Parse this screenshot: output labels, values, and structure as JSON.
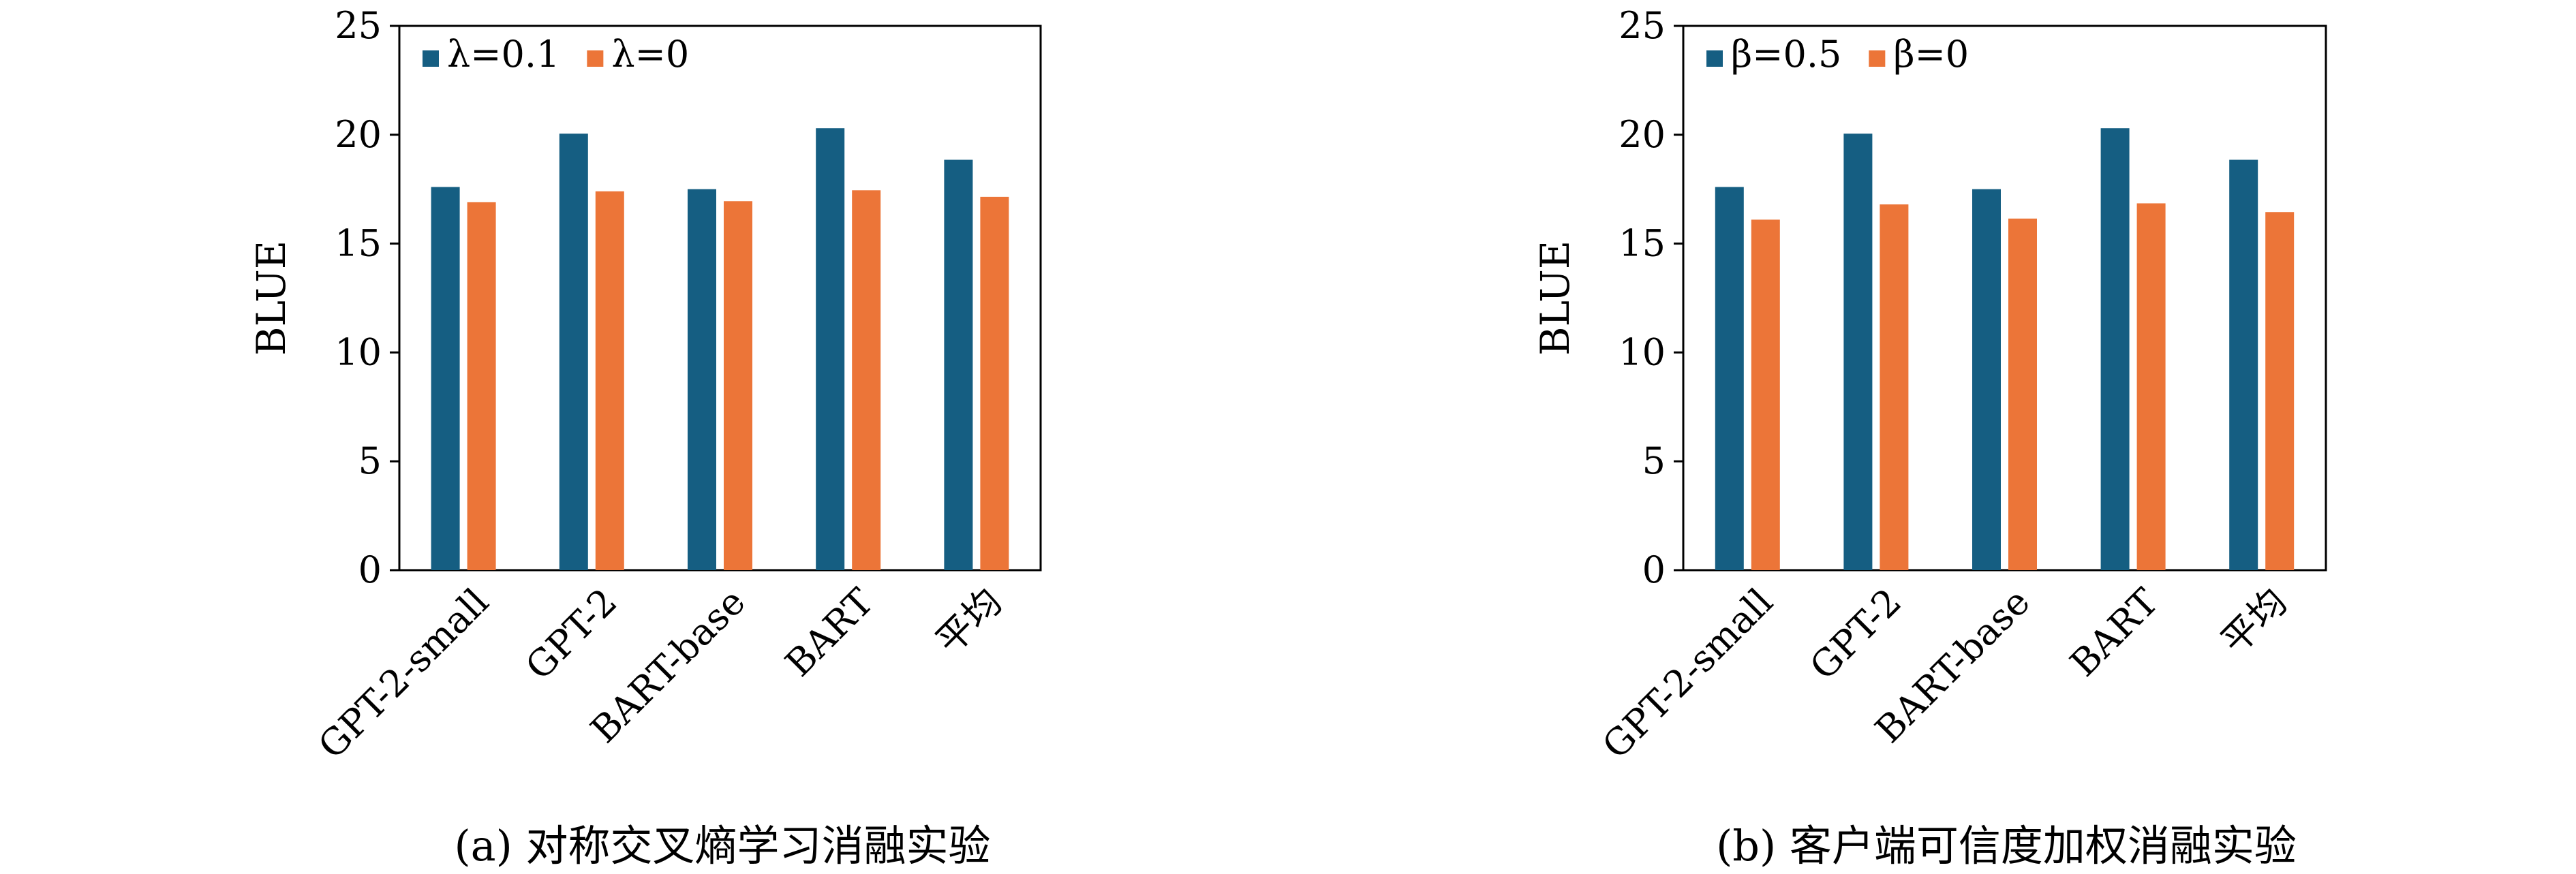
{
  "colors": {
    "series_a": "#155e82",
    "series_b": "#ec7538",
    "axis": "#000000"
  },
  "chart_data": [
    {
      "type": "bar",
      "caption": "(a) 对称交叉熵学习消融实验",
      "ylabel": "BLUE",
      "xlabel": "",
      "ylim": [
        0,
        25
      ],
      "yticks": [
        "0",
        "5",
        "10",
        "15",
        "20",
        "25"
      ],
      "legend_position": "top-left",
      "categories": [
        "GPT-2-small",
        "GPT-2",
        "BART-base",
        "BART",
        "平均"
      ],
      "series": [
        {
          "name": "λ=0.1",
          "values": [
            17.6,
            20.05,
            17.5,
            20.3,
            18.85
          ]
        },
        {
          "name": "λ=0",
          "values": [
            16.9,
            17.4,
            16.95,
            17.45,
            17.15
          ]
        }
      ]
    },
    {
      "type": "bar",
      "caption": "(b) 客户端可信度加权消融实验",
      "ylabel": "BLUE",
      "xlabel": "",
      "ylim": [
        0,
        25
      ],
      "yticks": [
        "0",
        "5",
        "10",
        "15",
        "20",
        "25"
      ],
      "legend_position": "top-left",
      "categories": [
        "GPT-2-small",
        "GPT-2",
        "BART-base",
        "BART",
        "平均"
      ],
      "series": [
        {
          "name": "β=0.5",
          "values": [
            17.6,
            20.05,
            17.5,
            20.3,
            18.85
          ]
        },
        {
          "name": "β=0",
          "values": [
            16.1,
            16.8,
            16.15,
            16.85,
            16.45
          ]
        }
      ]
    }
  ]
}
